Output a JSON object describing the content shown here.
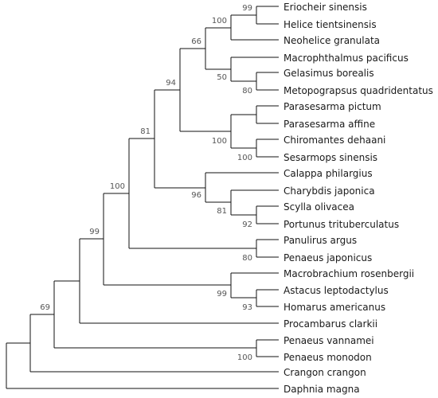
{
  "tree": {
    "taxa": [
      "Eriocheir sinensis",
      "Helice tientsinensis",
      "Neohelice granulata",
      "Macrophthalmus pacificus",
      "Gelasimus borealis",
      "Metopograpsus quadridentatus",
      "Parasesarma pictum",
      "Parasesarma affine",
      "Chiromantes dehaani",
      "Sesarmops sinensis",
      "Calappa philargius",
      "Charybdis japonica",
      "Scylla olivacea",
      "Portunus trituberculatus",
      "Panulirus argus",
      "Penaeus japonicus",
      "Macrobrachium rosenbergii",
      "Astacus leptodactylus",
      "Homarus americanus",
      "Procambarus clarkii",
      "Penaeus vannamei",
      "Penaeus monodon",
      "Crangon crangon",
      "Daphnia magna"
    ],
    "support_values": [
      "99",
      "100",
      "66",
      "50",
      "80",
      "94",
      "100",
      "100",
      "81",
      "96",
      "81",
      "92",
      "100",
      "80",
      "99",
      "93",
      "99",
      "100",
      "69"
    ]
  },
  "colors": {
    "branch": "#111111",
    "label": "#1a1a1a",
    "support": "#555555"
  }
}
